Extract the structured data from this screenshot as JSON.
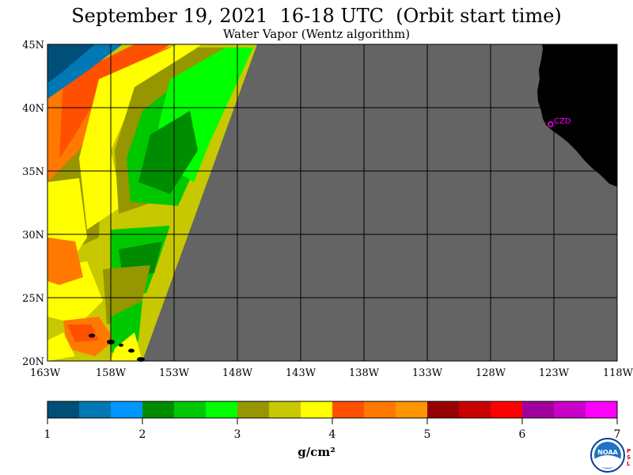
{
  "header": {
    "title": "September 19, 2021  16-18 UTC  (Orbit start time)",
    "subtitle": "Water Vapor (Wentz algorithm)"
  },
  "map": {
    "lat_labels": [
      "45N",
      "40N",
      "35N",
      "30N",
      "25N",
      "20N"
    ],
    "lon_labels": [
      "163W",
      "158W",
      "153W",
      "148W",
      "143W",
      "138W",
      "133W",
      "128W",
      "123W",
      "118W"
    ],
    "lat_range": [
      20,
      45
    ],
    "lon_range": [
      -163,
      -118
    ],
    "station_label": "CZD",
    "colors": {
      "no_data": "#646464",
      "land": "#000000",
      "station": "#ff00ff"
    }
  },
  "colorbar": {
    "units": "g/cm²",
    "ticks": [
      "1",
      "2",
      "3",
      "4",
      "5",
      "6",
      "7"
    ],
    "range": [
      1,
      7
    ],
    "colors": [
      "#004f78",
      "#0078b4",
      "#0096ff",
      "#008c00",
      "#00c800",
      "#00ff00",
      "#969600",
      "#c8c800",
      "#ffff00",
      "#ff5000",
      "#ff7800",
      "#ff9600",
      "#960000",
      "#c80000",
      "#ff0000",
      "#a0009b",
      "#c800c8",
      "#ff00ff"
    ]
  },
  "logo": {
    "name": "noaa-logo",
    "text": "NOAA",
    "side_text": "PSL"
  }
}
